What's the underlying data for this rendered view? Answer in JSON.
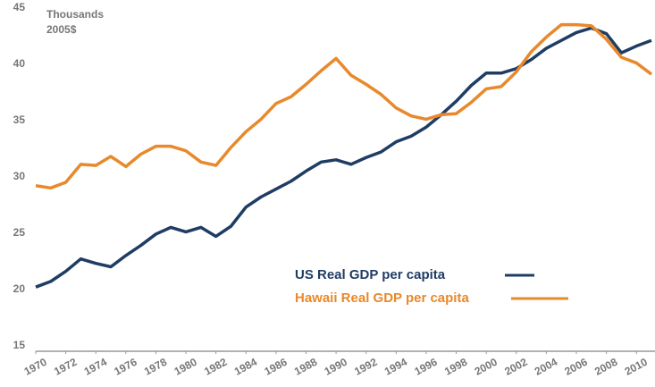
{
  "chart_data": {
    "type": "line",
    "ylabel_lines": [
      "Thousands",
      "2005$"
    ],
    "x": [
      1970,
      1971,
      1972,
      1973,
      1974,
      1975,
      1976,
      1977,
      1978,
      1979,
      1980,
      1981,
      1982,
      1983,
      1984,
      1985,
      1986,
      1987,
      1988,
      1989,
      1990,
      1991,
      1992,
      1993,
      1994,
      1995,
      1996,
      1997,
      1998,
      1999,
      2000,
      2001,
      2002,
      2003,
      2004,
      2005,
      2006,
      2007,
      2008,
      2009,
      2010,
      2011
    ],
    "series": [
      {
        "name": "US Real GDP per capita",
        "color": "#1f3d64",
        "values": [
          20.7,
          21.2,
          22.1,
          23.2,
          22.8,
          22.5,
          23.5,
          24.4,
          25.4,
          26.0,
          25.6,
          26.0,
          25.2,
          26.1,
          27.8,
          28.7,
          29.4,
          30.1,
          31.0,
          31.8,
          32.0,
          31.6,
          32.2,
          32.7,
          33.6,
          34.1,
          34.9,
          36.0,
          37.2,
          38.6,
          39.7,
          39.7,
          40.1,
          40.9,
          41.9,
          42.6,
          43.3,
          43.7,
          43.2,
          41.5,
          42.1,
          42.6
        ]
      },
      {
        "name": "Hawaii Real GDP per capita",
        "color": "#e8892b",
        "values": [
          29.7,
          29.5,
          30.0,
          31.6,
          31.5,
          32.3,
          31.4,
          32.5,
          33.2,
          33.2,
          32.8,
          31.8,
          31.5,
          33.1,
          34.5,
          35.6,
          37.0,
          37.6,
          38.7,
          39.9,
          41.0,
          39.5,
          38.7,
          37.8,
          36.6,
          35.9,
          35.6,
          36.0,
          36.1,
          37.1,
          38.3,
          38.5,
          39.8,
          41.6,
          42.9,
          44.0,
          44.0,
          43.9,
          42.7,
          41.1,
          40.6,
          39.6
        ]
      }
    ],
    "xlim": [
      1970,
      2011
    ],
    "xticks": [
      1970,
      1972,
      1974,
      1976,
      1978,
      1980,
      1982,
      1984,
      1986,
      1988,
      1990,
      1992,
      1994,
      1996,
      1998,
      2000,
      2002,
      2004,
      2006,
      2008,
      2010
    ],
    "ylim": [
      15,
      45
    ],
    "yticks": [
      15,
      20,
      25,
      30,
      35,
      40,
      45
    ],
    "grid": false
  }
}
